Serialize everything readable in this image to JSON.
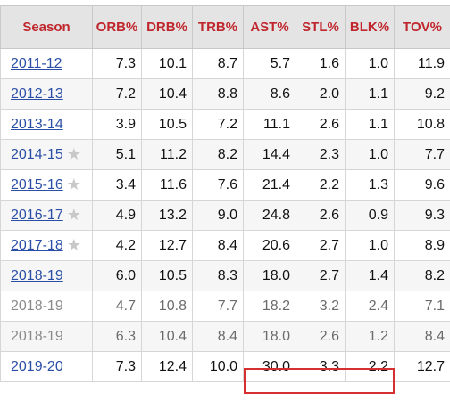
{
  "table": {
    "columns": [
      "Season",
      "ORB%",
      "DRB%",
      "TRB%",
      "AST%",
      "STL%",
      "BLK%",
      "TOV%"
    ],
    "rows": [
      {
        "season": "2011-12",
        "star": false,
        "values": [
          "7.3",
          "10.1",
          "8.7",
          "5.7",
          "1.6",
          "1.0",
          "11.9"
        ]
      },
      {
        "season": "2012-13",
        "star": false,
        "values": [
          "7.2",
          "10.4",
          "8.8",
          "8.6",
          "2.0",
          "1.1",
          "9.2"
        ]
      },
      {
        "season": "2013-14",
        "star": false,
        "values": [
          "3.9",
          "10.5",
          "7.2",
          "11.1",
          "2.6",
          "1.1",
          "10.8"
        ]
      },
      {
        "season": "2014-15",
        "star": true,
        "values": [
          "5.1",
          "11.2",
          "8.2",
          "14.4",
          "2.3",
          "1.0",
          "7.7"
        ]
      },
      {
        "season": "2015-16",
        "star": true,
        "values": [
          "3.4",
          "11.6",
          "7.6",
          "21.4",
          "2.2",
          "1.3",
          "9.6"
        ]
      },
      {
        "season": "2016-17",
        "star": true,
        "values": [
          "4.9",
          "13.2",
          "9.0",
          "24.8",
          "2.6",
          "0.9",
          "9.3"
        ]
      },
      {
        "season": "2017-18",
        "star": true,
        "values": [
          "4.2",
          "12.7",
          "8.4",
          "20.6",
          "2.7",
          "1.0",
          "8.9"
        ]
      },
      {
        "season": "2018-19",
        "star": false,
        "values": [
          "6.0",
          "10.5",
          "8.3",
          "18.0",
          "2.7",
          "1.4",
          "8.2"
        ]
      },
      {
        "season": "2018-19",
        "star": false,
        "values": [
          "4.7",
          "10.8",
          "7.7",
          "18.2",
          "3.2",
          "2.4",
          "7.1"
        ]
      },
      {
        "season": "2018-19",
        "star": false,
        "values": [
          "6.3",
          "10.4",
          "8.4",
          "18.0",
          "2.6",
          "1.2",
          "8.4"
        ]
      },
      {
        "season": "2019-20",
        "star": false,
        "values": [
          "7.3",
          "12.4",
          "10.0",
          "30.0",
          "3.3",
          "2.2",
          "12.7"
        ]
      }
    ]
  },
  "icons": {
    "allstar": "star-icon"
  },
  "colors": {
    "header_text": "#c0262d",
    "link": "#2a4ea6",
    "highlight": "#d62f2f",
    "header_bg": "#e4e4e4"
  }
}
